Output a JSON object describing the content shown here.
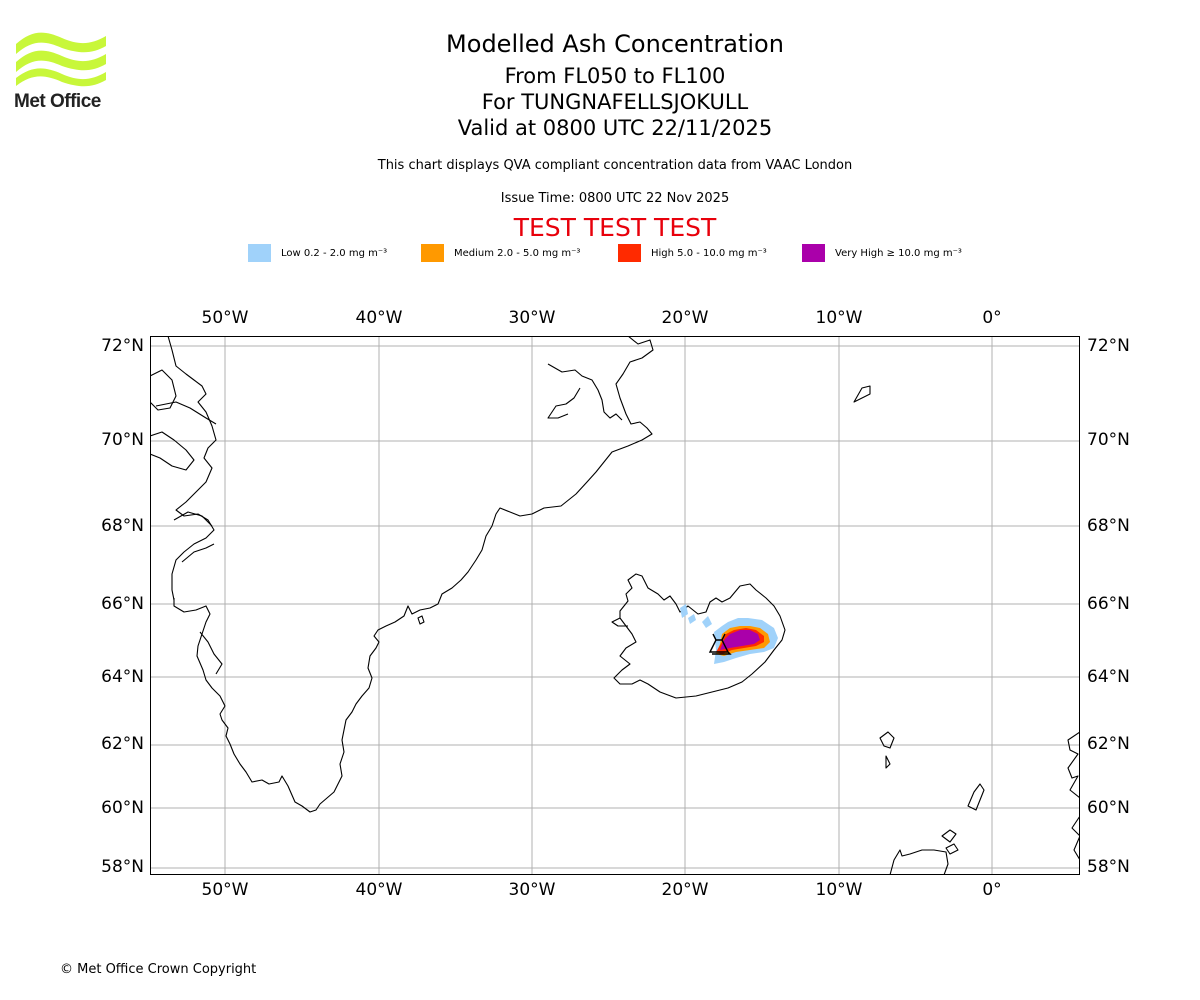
{
  "logo": {
    "text": "Met Office",
    "color": "#c8f73a"
  },
  "header": {
    "title": "Modelled Ash Concentration",
    "levels": "From FL050 to FL100",
    "volcano": "For TUNGNAFELLSJOKULL",
    "valid": "Valid at 0800 UTC 22/11/2025",
    "description": "This chart displays QVA compliant concentration data from VAAC London",
    "issue_time": "Issue Time: 0800 UTC 22 Nov 2025",
    "test_banner": "TEST TEST TEST"
  },
  "legend": [
    {
      "label": "Low 0.2 - 2.0 mg m⁻³",
      "color": "#a0d2fa"
    },
    {
      "label": "Medium 2.0 - 5.0 mg m⁻³",
      "color": "#ff9900"
    },
    {
      "label": "High 5.0 - 10.0 mg m⁻³",
      "color": "#ff2a00"
    },
    {
      "label": "Very High ≥ 10.0 mg m⁻³",
      "color": "#aa00aa"
    }
  ],
  "axes": {
    "longitudes": [
      "50°W",
      "40°W",
      "30°W",
      "20°W",
      "10°W",
      "0°"
    ],
    "latitudes": [
      "72°N",
      "70°N",
      "68°N",
      "66°N",
      "64°N",
      "62°N",
      "60°N",
      "58°N"
    ]
  },
  "volcano_marker": {
    "name": "TUNGNAFELLSJOKULL",
    "lat": 64.7,
    "lon": -17.9
  },
  "footer": {
    "copyright": "© Met Office Crown Copyright"
  }
}
